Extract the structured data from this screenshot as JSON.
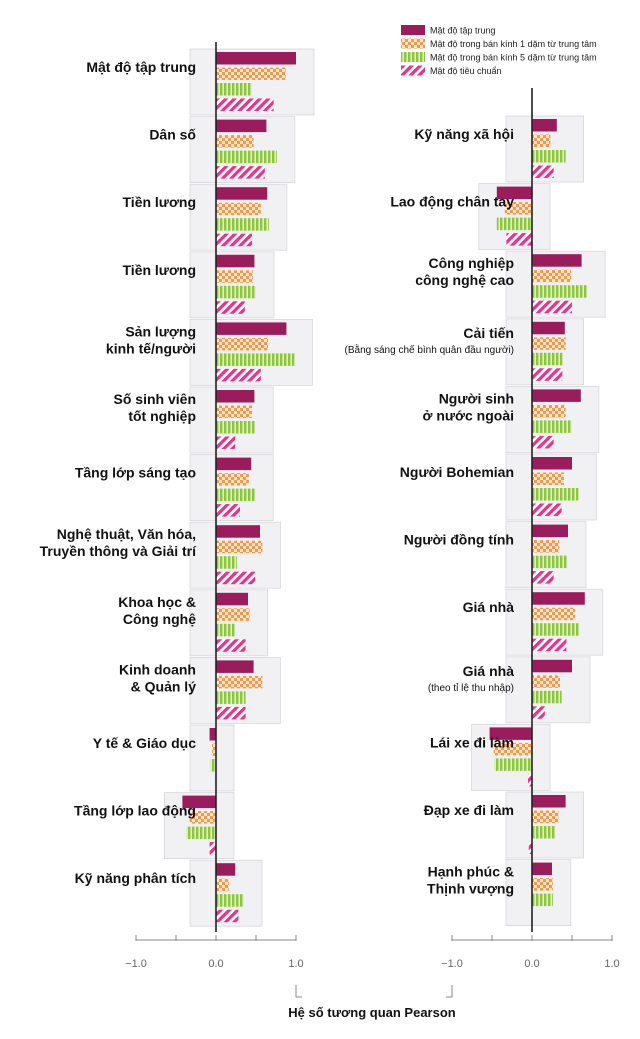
{
  "chart_data": {
    "type": "bar",
    "orientation": "horizontal",
    "xlabel": "Hệ số tương quan Pearson",
    "xlim": [
      -1.0,
      1.0
    ],
    "xticks": [
      "−1.0",
      "0.0",
      "1.0"
    ],
    "legend_position": "top-right",
    "series": [
      {
        "name": "Mật độ tập trung",
        "color": "#9b1c5c",
        "pattern": "solid"
      },
      {
        "name": "Mật độ trong bán kính 1 dặm từ trung tâm",
        "color": "#f39a4a",
        "pattern": "checker"
      },
      {
        "name": "Mật độ trong bán kính 5 dặm từ trung tâm",
        "color": "#8cc63f",
        "pattern": "vertical-stripes"
      },
      {
        "name": "Mật độ tiêu chuẩn",
        "color": "#e8308c",
        "pattern": "diagonal-stripes"
      }
    ],
    "panels": [
      {
        "categories": [
          {
            "label": "Mật độ tập trung",
            "values": [
              1.0,
              0.87,
              0.45,
              0.72
            ]
          },
          {
            "label": "Dân số",
            "values": [
              0.63,
              0.47,
              0.76,
              0.61
            ]
          },
          {
            "label": "Tiền lương",
            "values": [
              0.64,
              0.56,
              0.66,
              0.45
            ]
          },
          {
            "label": "Tiền lương",
            "values": [
              0.48,
              0.46,
              0.5,
              0.36
            ]
          },
          {
            "label": "Sản lượng kinh tế/người",
            "values": [
              0.88,
              0.65,
              0.98,
              0.56
            ]
          },
          {
            "label": "Số sinh viên tốt nghiệp",
            "values": [
              0.48,
              0.45,
              0.49,
              0.24
            ]
          },
          {
            "label": "Tầng  lớp sáng tạo",
            "values": [
              0.44,
              0.41,
              0.49,
              0.3
            ]
          },
          {
            "label": "Nghệ thuật, Văn hóa, Truyền thông và Giải trí",
            "values": [
              0.55,
              0.58,
              0.26,
              0.49
            ]
          },
          {
            "label": "Khoa học & Công nghệ",
            "values": [
              0.4,
              0.42,
              0.24,
              0.37
            ]
          },
          {
            "label": "Kinh doanh & Quản lý",
            "values": [
              0.47,
              0.58,
              0.37,
              0.37
            ]
          },
          {
            "label": "Y tế & Giáo dục",
            "values": [
              -0.08,
              -0.05,
              -0.07,
              0.0
            ]
          },
          {
            "label": "Tầng lớp lao động",
            "values": [
              -0.42,
              -0.33,
              -0.37,
              -0.08
            ]
          },
          {
            "label": "Kỹ năng phân tích",
            "values": [
              0.24,
              0.16,
              0.35,
              0.28
            ]
          }
        ]
      },
      {
        "categories": [
          {
            "label": "Kỹ năng xã hội",
            "values": [
              0.31,
              0.23,
              0.42,
              0.27
            ]
          },
          {
            "label": "Lao động chân tay",
            "values": [
              -0.44,
              -0.34,
              -0.44,
              -0.32
            ]
          },
          {
            "label": "Công nghiệp công nghệ cao",
            "values": [
              0.62,
              0.49,
              0.69,
              0.5
            ]
          },
          {
            "label": "Cải tiến",
            "sublabel": "(Bằng sáng chế bình quân đầu người)",
            "values": [
              0.41,
              0.42,
              0.38,
              0.38
            ]
          },
          {
            "label": "Người sinh ở nước ngoài",
            "values": [
              0.61,
              0.42,
              0.5,
              0.27
            ]
          },
          {
            "label": "Người Bohemian",
            "values": [
              0.5,
              0.4,
              0.58,
              0.37
            ]
          },
          {
            "label": "Người đồng tính",
            "values": [
              0.45,
              0.34,
              0.44,
              0.27
            ]
          },
          {
            "label": "Giá nhà",
            "values": [
              0.66,
              0.54,
              0.59,
              0.43
            ]
          },
          {
            "label": "Giá nhà",
            "sublabel": "(theo tỉ lệ thu nhập)",
            "values": [
              0.5,
              0.35,
              0.37,
              0.16
            ]
          },
          {
            "label": "Lái xe đi làm",
            "values": [
              -0.53,
              -0.48,
              -0.47,
              -0.05
            ]
          },
          {
            "label": "Đạp xe đi làm",
            "values": [
              0.42,
              0.33,
              0.29,
              -0.04
            ]
          },
          {
            "label": "Hạnh phúc & Thịnh vượng",
            "values": [
              0.25,
              0.26,
              0.26,
              0.0
            ]
          }
        ]
      }
    ]
  }
}
